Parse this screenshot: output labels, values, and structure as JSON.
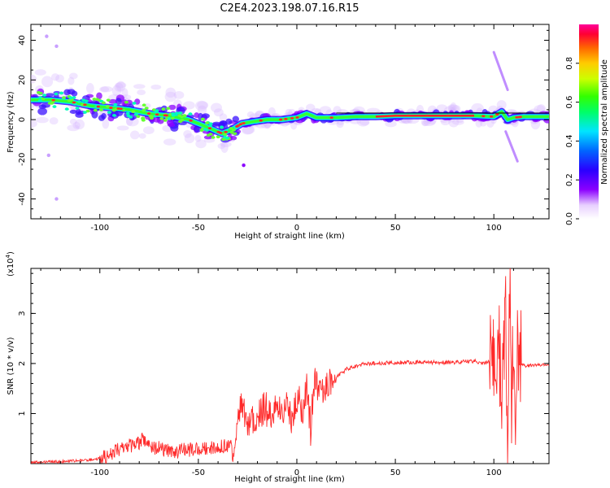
{
  "figure": {
    "title": "C2E4.2023.198.07.16.R15"
  },
  "chart_data": [
    {
      "type": "heatmap",
      "xlabel": "Height of straight line (km)",
      "ylabel": "Frequency (Hz)",
      "xlim": [
        -135,
        128
      ],
      "ylim": [
        -50,
        48
      ],
      "xticks": [
        -100,
        -50,
        0,
        50,
        100
      ],
      "yticks": [
        -40,
        -20,
        0,
        20,
        40
      ],
      "colorbar": {
        "label": "Normalized spectral amplitude",
        "range": [
          0.0,
          1.0
        ],
        "ticks": [
          0.0,
          0.2,
          0.4,
          0.6,
          0.8
        ],
        "colormap": [
          "#ffffff",
          "#8b00ff",
          "#2a00ff",
          "#0066ff",
          "#00e5ff",
          "#00ff66",
          "#33ff00",
          "#ccff00",
          "#ffcc00",
          "#ff6600",
          "#ff0033",
          "#ff0099"
        ]
      },
      "ridge": {
        "x": [
          -135,
          -125,
          -115,
          -105,
          -95,
          -85,
          -75,
          -65,
          -55,
          -45,
          -38,
          -33,
          -28,
          -22,
          -15,
          -8,
          0,
          5,
          10,
          20,
          30,
          40,
          50,
          60,
          70,
          80,
          90,
          100,
          104,
          107,
          110,
          115,
          120,
          128
        ],
        "y": [
          10,
          10,
          9,
          7,
          6,
          5,
          3,
          2,
          0,
          -4,
          -7,
          -5,
          -2,
          -1,
          0,
          0,
          1,
          3,
          1,
          1,
          1.5,
          1.5,
          2,
          2,
          2,
          2,
          2,
          1.5,
          4,
          0,
          1,
          1.5,
          1.5,
          1.5
        ]
      },
      "streaks": [
        {
          "x": [
            100,
            107
          ],
          "y": [
            34,
            15
          ]
        },
        {
          "x": [
            106,
            112
          ],
          "y": [
            -6,
            -21
          ]
        }
      ],
      "outliers": {
        "x": [
          -127,
          -122,
          -126,
          -122,
          -27
        ],
        "y": [
          42,
          37,
          -18,
          -40,
          -23
        ]
      }
    },
    {
      "type": "line",
      "xlabel": "Height of straight line (km)",
      "ylabel": "SNR (10 * v/v)",
      "y_multiplier": "(x10",
      "y_multiplier_exp": "4",
      "xlim": [
        -135,
        128
      ],
      "ylim": [
        0,
        3.9
      ],
      "xticks": [
        -100,
        -50,
        0,
        50,
        100
      ],
      "yticks": [
        1,
        2,
        3
      ],
      "color": "#ff2a2a",
      "series": [
        {
          "x": [
            -135,
            -120,
            -110,
            -100,
            -95,
            -90,
            -85,
            -80,
            -78,
            -75,
            -70,
            -65,
            -60,
            -55,
            -50,
            -45,
            -40,
            -36,
            -34,
            -32,
            -30,
            -28,
            -26,
            -24,
            -20,
            -16,
            -12,
            -8,
            -5,
            -3,
            0,
            3,
            5,
            7,
            9,
            11,
            13,
            15,
            18,
            22,
            26,
            30,
            35,
            40,
            50,
            60,
            70,
            80,
            90,
            95,
            100,
            102,
            104,
            106,
            107,
            108,
            109,
            110,
            111,
            112,
            114,
            116,
            120,
            128
          ],
          "y": [
            0.02,
            0.04,
            0.06,
            0.1,
            0.18,
            0.28,
            0.35,
            0.4,
            0.5,
            0.35,
            0.3,
            0.25,
            0.25,
            0.28,
            0.3,
            0.32,
            0.33,
            0.35,
            0.4,
            0.1,
            0.9,
            1.2,
            0.8,
            0.9,
            1.0,
            1.1,
            1.0,
            1.05,
            1.15,
            0.9,
            1.3,
            1.1,
            1.6,
            0.7,
            1.7,
            1.4,
            1.55,
            1.6,
            1.65,
            1.8,
            1.9,
            1.95,
            2.0,
            2.0,
            2.02,
            2.03,
            2.02,
            2.02,
            2.05,
            2.0,
            2.05,
            2.5,
            1.6,
            2.8,
            0.2,
            3.9,
            1.2,
            2.9,
            0.8,
            2.6,
            2.0,
            1.95,
            1.97,
            1.98
          ]
        }
      ]
    }
  ]
}
